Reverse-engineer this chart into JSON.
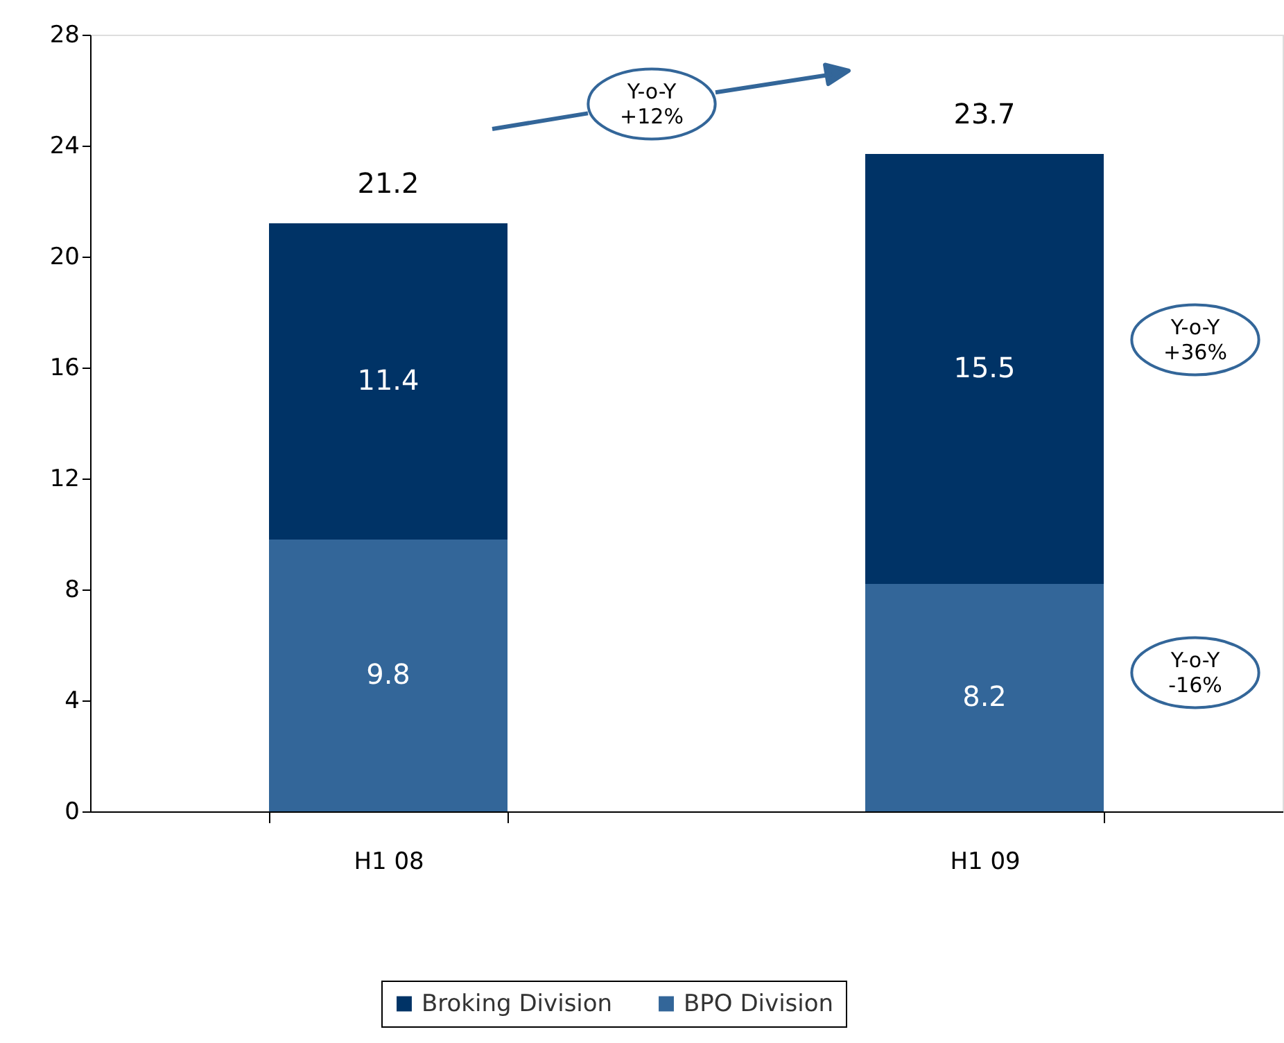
{
  "chart_data": {
    "type": "bar",
    "stacked": true,
    "categories": [
      "H1 08",
      "H1 09"
    ],
    "series": [
      {
        "name": "BPO Division",
        "color": "#336699",
        "values": [
          9.8,
          8.2
        ]
      },
      {
        "name": "Broking Division",
        "color": "#003366",
        "values": [
          11.4,
          15.5
        ]
      }
    ],
    "totals": [
      "21.2",
      "23.7"
    ],
    "data_labels": true,
    "ylim": [
      0,
      28
    ],
    "yticks": [
      0,
      4,
      8,
      12,
      16,
      20,
      24,
      28
    ],
    "grid": false,
    "legend": "bottom",
    "annotations": [
      "Y-o-Y\n+12%",
      "Y-o-Y\n+36%",
      "Y-o-Y\n-16%"
    ]
  }
}
